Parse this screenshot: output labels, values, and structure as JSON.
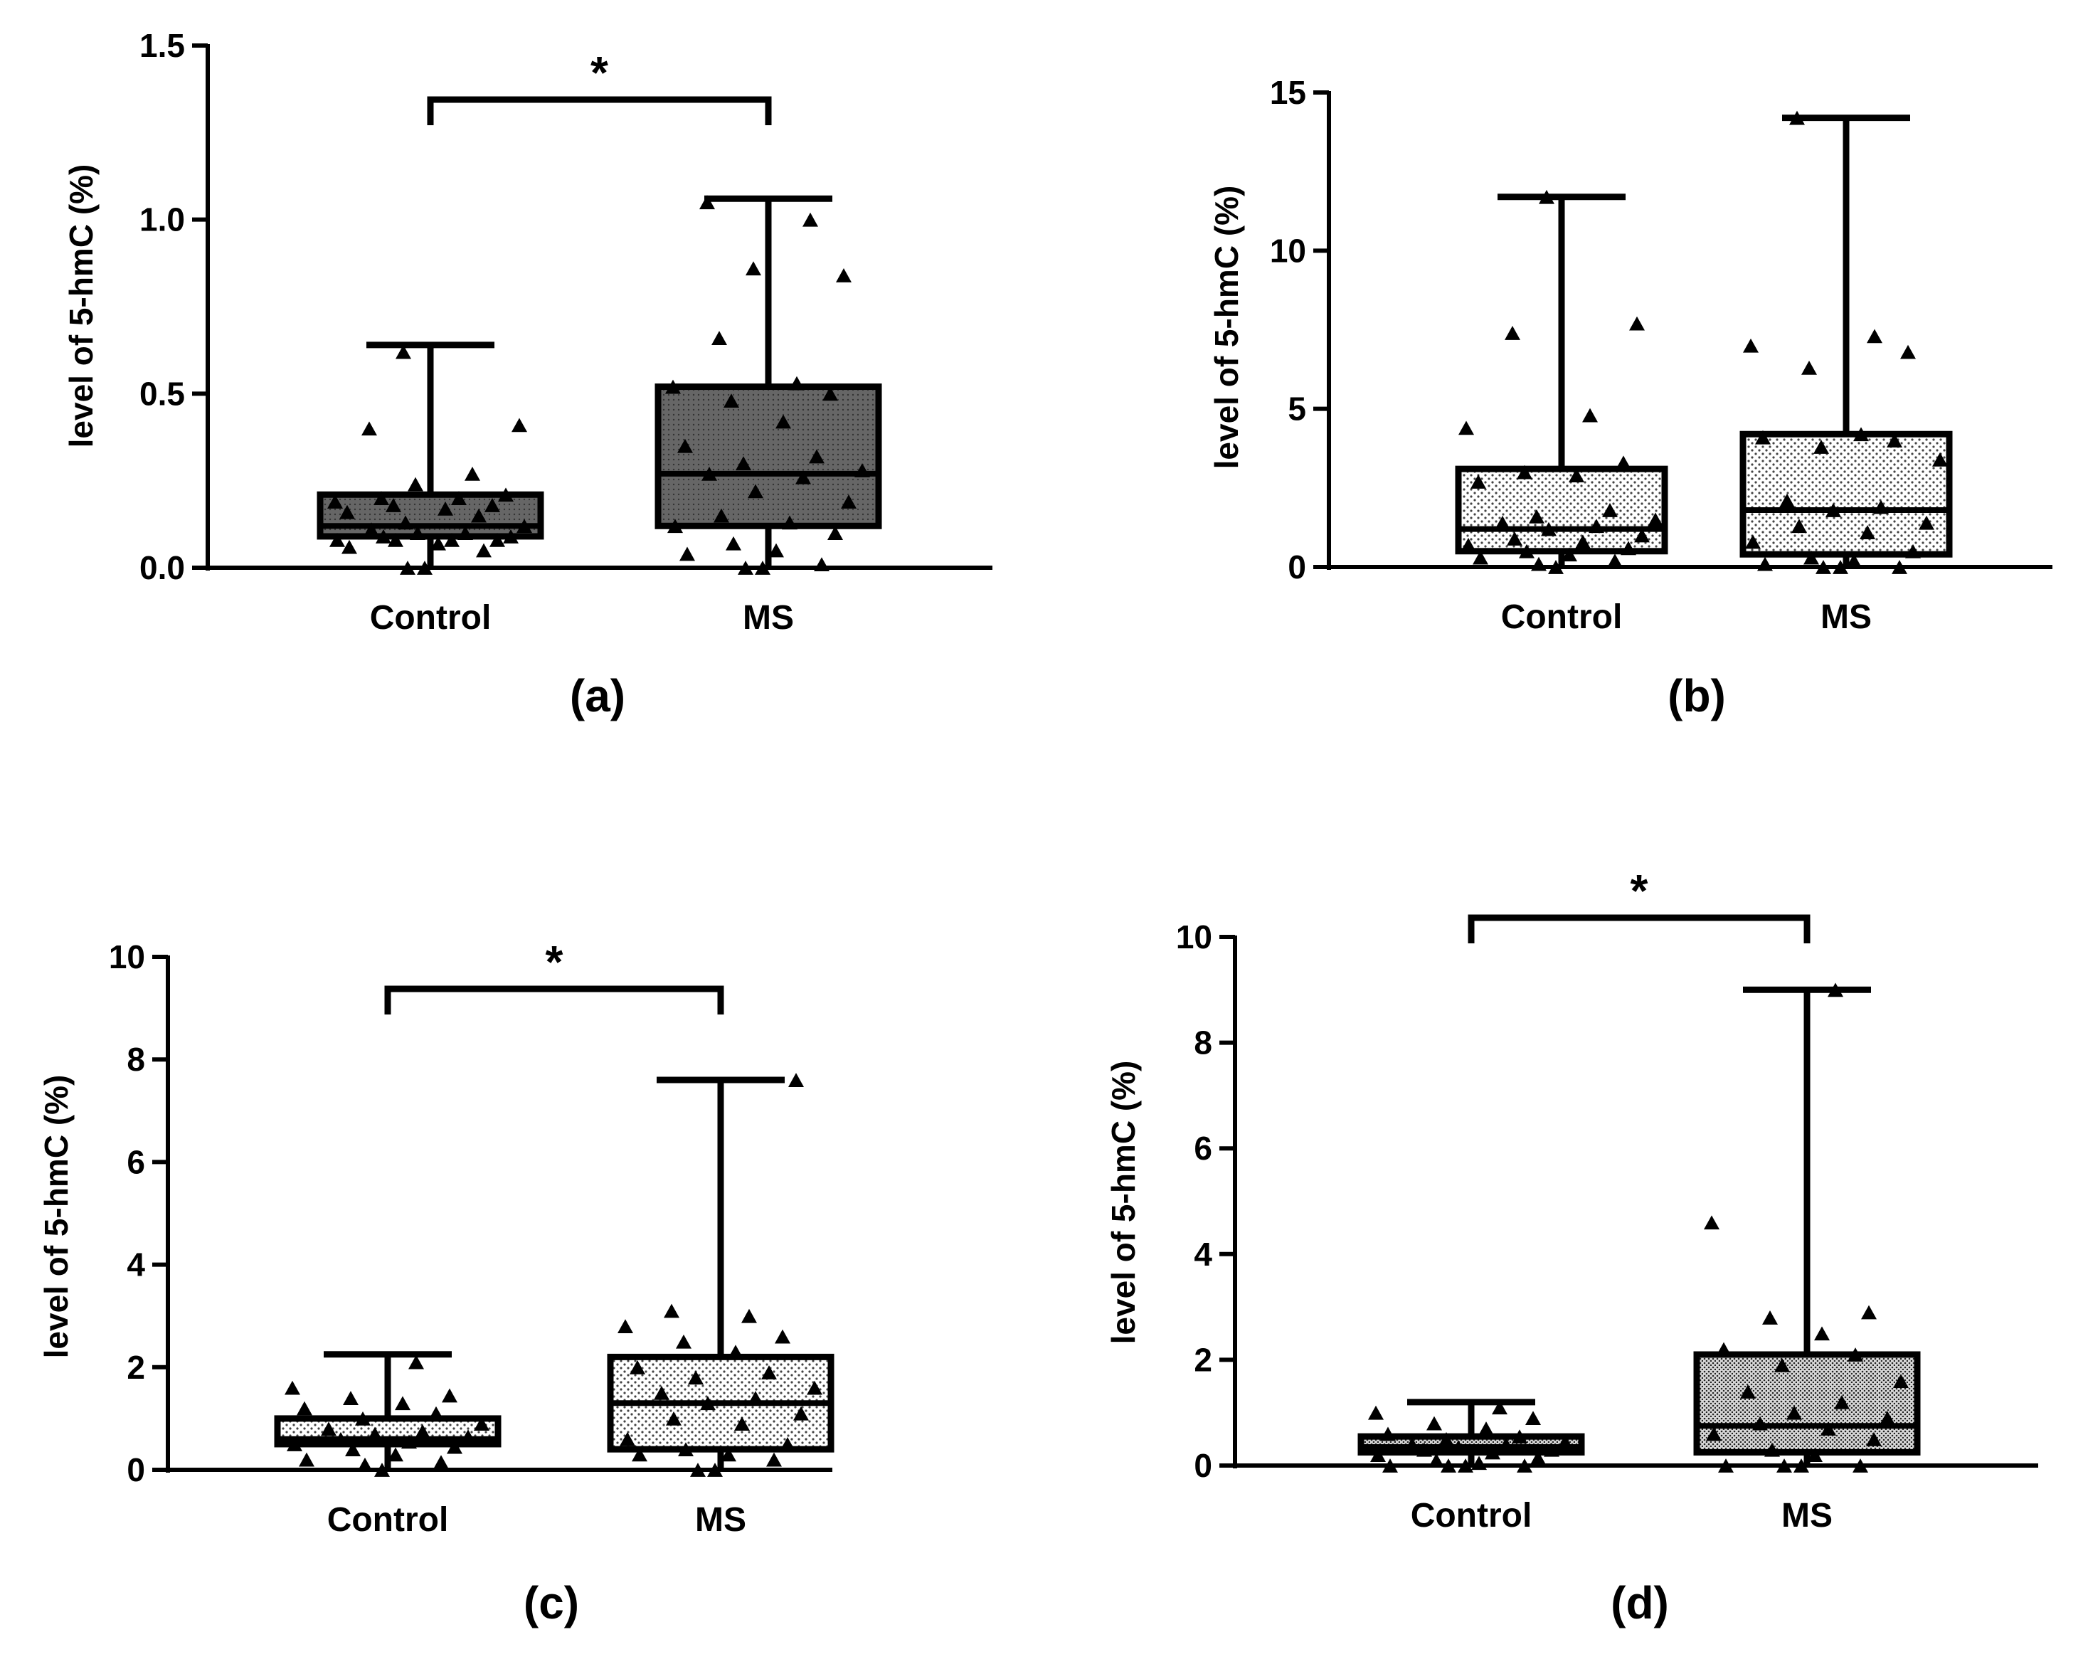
{
  "chart_data": [
    {
      "type": "box",
      "panel_label": "(a)",
      "ylabel": "level of 5-hmC (%)",
      "ylim": [
        0,
        1.5
      ],
      "yticks": [
        "0.0",
        "0.5",
        "1.0",
        "1.5"
      ],
      "categories": [
        "Control",
        "MS"
      ],
      "fill": "dark",
      "significance": "*",
      "boxes": [
        {
          "name": "Control",
          "min": 0.0,
          "q1": 0.09,
          "median": 0.12,
          "q3": 0.21,
          "max": 0.64,
          "points": [
            0.0,
            0.0,
            0.05,
            0.06,
            0.07,
            0.08,
            0.08,
            0.08,
            0.08,
            0.09,
            0.09,
            0.1,
            0.1,
            0.11,
            0.12,
            0.13,
            0.15,
            0.16,
            0.17,
            0.18,
            0.18,
            0.19,
            0.2,
            0.2,
            0.21,
            0.24,
            0.27,
            0.4,
            0.41,
            0.62
          ]
        },
        {
          "name": "MS",
          "min": 0.0,
          "q1": 0.12,
          "median": 0.27,
          "q3": 0.52,
          "max": 1.06,
          "points": [
            0.0,
            0.0,
            0.01,
            0.04,
            0.05,
            0.07,
            0.1,
            0.12,
            0.13,
            0.15,
            0.19,
            0.22,
            0.26,
            0.27,
            0.28,
            0.3,
            0.32,
            0.35,
            0.42,
            0.48,
            0.5,
            0.52,
            0.53,
            0.66,
            0.84,
            0.86,
            1.0,
            1.05
          ]
        }
      ]
    },
    {
      "type": "box",
      "panel_label": "(b)",
      "ylabel": "level of 5-hmC (%)",
      "ylim": [
        0,
        15
      ],
      "yticks": [
        "0",
        "5",
        "10",
        "15"
      ],
      "categories": [
        "Control",
        "MS"
      ],
      "fill": "light",
      "significance": "",
      "boxes": [
        {
          "name": "Control",
          "min": 0.0,
          "q1": 0.5,
          "median": 1.2,
          "q3": 3.1,
          "max": 11.7,
          "points": [
            0.0,
            0.1,
            0.2,
            0.3,
            0.4,
            0.5,
            0.6,
            0.7,
            0.8,
            0.9,
            1.0,
            1.2,
            1.3,
            1.4,
            1.5,
            1.6,
            1.8,
            2.7,
            2.9,
            3.0,
            3.3,
            4.4,
            4.8,
            7.4,
            7.7,
            11.7
          ]
        },
        {
          "name": "MS",
          "min": 0.0,
          "q1": 0.4,
          "median": 1.8,
          "q3": 4.2,
          "max": 14.2,
          "points": [
            0.0,
            0.0,
            0.0,
            0.1,
            0.2,
            0.3,
            0.5,
            0.8,
            1.1,
            1.3,
            1.4,
            1.8,
            1.9,
            2.1,
            3.4,
            3.8,
            4.0,
            4.1,
            4.2,
            6.3,
            6.8,
            7.0,
            7.3,
            14.2
          ]
        }
      ]
    },
    {
      "type": "box",
      "panel_label": "(c)",
      "ylabel": "level of 5-hmC (%)",
      "ylim": [
        0,
        10
      ],
      "yticks": [
        "0",
        "2",
        "4",
        "6",
        "8",
        "10"
      ],
      "categories": [
        "Control",
        "MS"
      ],
      "fill": "light",
      "significance": "*",
      "boxes": [
        {
          "name": "Control",
          "min": 0.0,
          "q1": 0.5,
          "median": 0.6,
          "q3": 1.0,
          "max": 2.25,
          "points": [
            0.0,
            0.1,
            0.15,
            0.2,
            0.3,
            0.4,
            0.45,
            0.5,
            0.55,
            0.6,
            0.65,
            0.7,
            0.75,
            0.8,
            0.9,
            1.0,
            1.1,
            1.2,
            1.3,
            1.4,
            1.45,
            1.6,
            2.1
          ]
        },
        {
          "name": "MS",
          "min": 0.0,
          "q1": 0.4,
          "median": 1.3,
          "q3": 2.2,
          "max": 7.6,
          "points": [
            0.0,
            0.0,
            0.2,
            0.3,
            0.3,
            0.4,
            0.5,
            0.6,
            0.9,
            1.0,
            1.1,
            1.3,
            1.4,
            1.5,
            1.6,
            1.8,
            1.9,
            2.0,
            2.3,
            2.5,
            2.6,
            2.8,
            3.0,
            3.1,
            7.6
          ]
        }
      ]
    },
    {
      "type": "box",
      "panel_label": "(d)",
      "ylabel": "level of 5-hmC (%)",
      "ylim": [
        0,
        10
      ],
      "yticks": [
        "0",
        "2",
        "4",
        "6",
        "8",
        "10"
      ],
      "categories": [
        "Control",
        "MS"
      ],
      "fill": "medium",
      "significance": "*",
      "boxes": [
        {
          "name": "Control",
          "min": 0.0,
          "q1": 0.25,
          "median": 0.35,
          "q3": 0.55,
          "max": 1.2,
          "points": [
            0.0,
            0.0,
            0.0,
            0.0,
            0.05,
            0.1,
            0.15,
            0.2,
            0.25,
            0.3,
            0.3,
            0.35,
            0.4,
            0.4,
            0.45,
            0.5,
            0.55,
            0.6,
            0.7,
            0.8,
            0.9,
            1.0,
            1.1
          ]
        },
        {
          "name": "MS",
          "min": 0.0,
          "q1": 0.25,
          "median": 0.75,
          "q3": 2.1,
          "max": 9.0,
          "points": [
            0.0,
            0.0,
            0.0,
            0.0,
            0.2,
            0.3,
            0.5,
            0.6,
            0.7,
            0.8,
            0.9,
            1.0,
            1.2,
            1.4,
            1.6,
            1.9,
            2.1,
            2.2,
            2.5,
            2.8,
            2.9,
            4.6,
            9.0
          ]
        }
      ]
    }
  ]
}
